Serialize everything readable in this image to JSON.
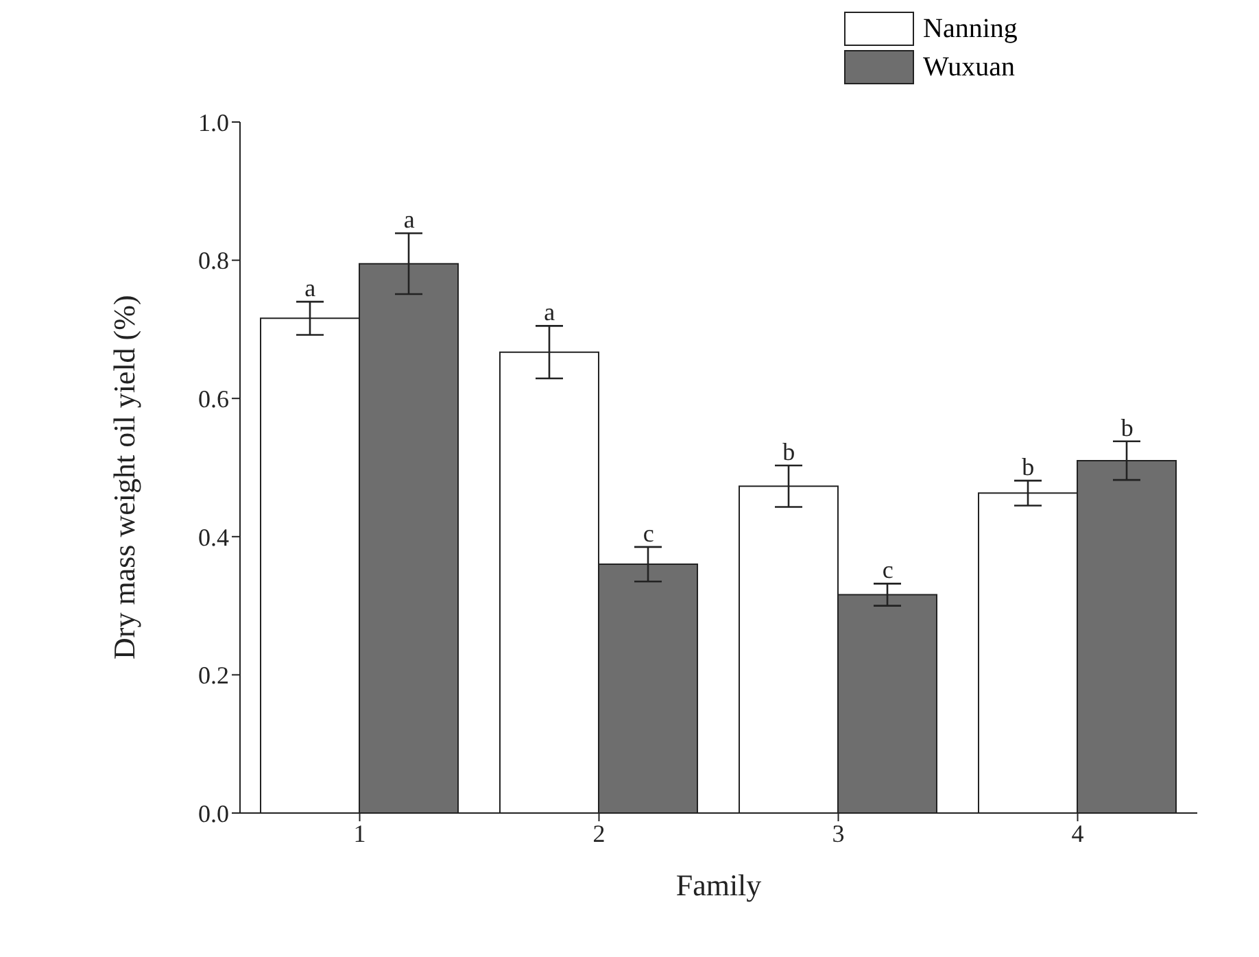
{
  "chart_data": {
    "type": "bar",
    "xlabel": "Family",
    "ylabel": "Dry mass weight oil yield (%)",
    "categories": [
      "1",
      "2",
      "3",
      "4"
    ],
    "series": [
      {
        "name": "Nanning",
        "color": "#ffffff",
        "values": [
          0.716,
          0.667,
          0.473,
          0.463
        ],
        "errors": [
          0.024,
          0.038,
          0.03,
          0.018
        ]
      },
      {
        "name": "Wuxuan",
        "color": "#6e6e6e",
        "values": [
          0.795,
          0.36,
          0.316,
          0.51
        ],
        "errors": [
          0.044,
          0.025,
          0.016,
          0.028
        ]
      }
    ],
    "annotations": [
      "a",
      "a",
      "a",
      "c",
      "b",
      "c",
      "b",
      "b"
    ],
    "ylim": [
      0,
      1
    ],
    "yticks": [
      {
        "value": 0,
        "label": "0.0"
      },
      {
        "value": 0.2,
        "label": "0.2"
      },
      {
        "value": 0.4,
        "label": "0.4"
      },
      {
        "value": 0.6,
        "label": "0.6"
      },
      {
        "value": 0.8,
        "label": "0.8"
      },
      {
        "value": 1,
        "label": "1.0"
      }
    ],
    "grid": false,
    "legend": "top right"
  }
}
